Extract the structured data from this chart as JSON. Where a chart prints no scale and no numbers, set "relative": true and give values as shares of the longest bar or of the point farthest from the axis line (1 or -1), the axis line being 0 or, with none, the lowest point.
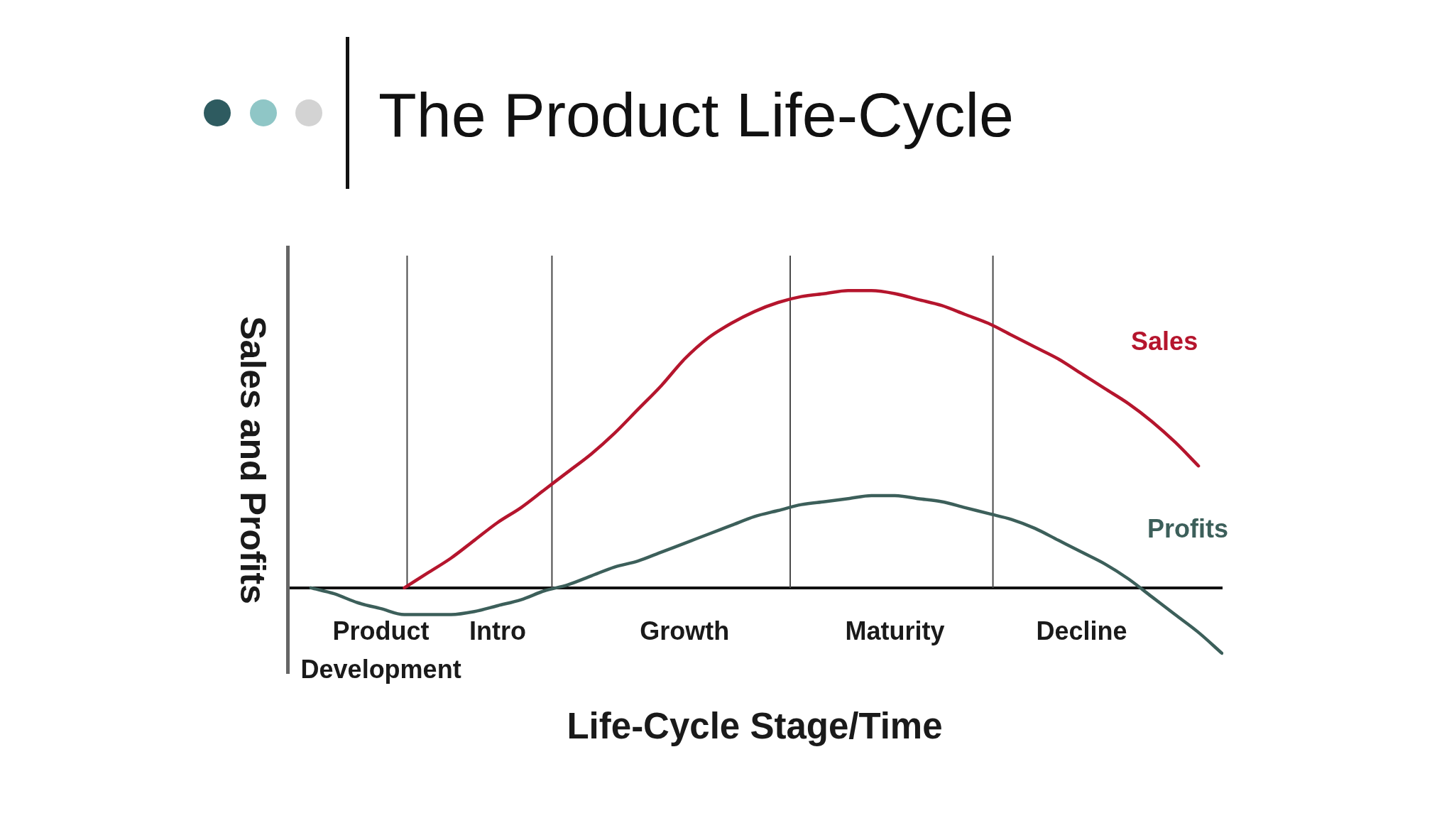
{
  "chart_data": {
    "type": "line",
    "title": "The Product Life-Cycle",
    "xlabel": "Life-Cycle Stage/Time",
    "ylabel": "Sales and Profits",
    "relative": true,
    "tick_labels": "x",
    "categories": [
      null,
      null,
      null,
      null,
      "Product Development",
      null,
      null,
      null,
      null,
      "Intro",
      null,
      null,
      null,
      null,
      null,
      null,
      null,
      "Growth",
      null,
      null,
      null,
      null,
      null,
      null,
      null,
      null,
      "Maturity",
      null,
      null,
      null,
      null,
      null,
      null,
      null,
      "Decline",
      null,
      null,
      null,
      null,
      null,
      null
    ],
    "series": [
      {
        "name": "Sales",
        "color": "#b5152d",
        "values": [
          null,
          null,
          null,
          null,
          null,
          0,
          0.05,
          0.1,
          0.16,
          0.22,
          0.27,
          0.33,
          0.39,
          0.45,
          0.52,
          0.6,
          0.68,
          0.77,
          0.84,
          0.89,
          0.93,
          0.96,
          0.98,
          0.99,
          1,
          1,
          0.99,
          0.97,
          0.95,
          0.92,
          0.89,
          0.85,
          0.81,
          0.77,
          0.72,
          0.67,
          0.62,
          0.56,
          0.49,
          0.41,
          null
        ]
      },
      {
        "name": "Profits",
        "color": "#3c5f5a",
        "values": [
          null,
          0,
          -0.02,
          -0.05,
          -0.07,
          -0.09,
          -0.09,
          -0.09,
          -0.08,
          -0.06,
          -0.04,
          -0.01,
          0.01,
          0.04,
          0.07,
          0.09,
          0.12,
          0.15,
          0.18,
          0.21,
          0.24,
          0.26,
          0.28,
          0.29,
          0.3,
          0.31,
          0.31,
          0.3,
          0.29,
          0.27,
          0.25,
          0.23,
          0.2,
          0.16,
          0.12,
          0.08,
          0.03,
          -0.03,
          -0.09,
          -0.15,
          -0.22
        ]
      }
    ]
  }
}
